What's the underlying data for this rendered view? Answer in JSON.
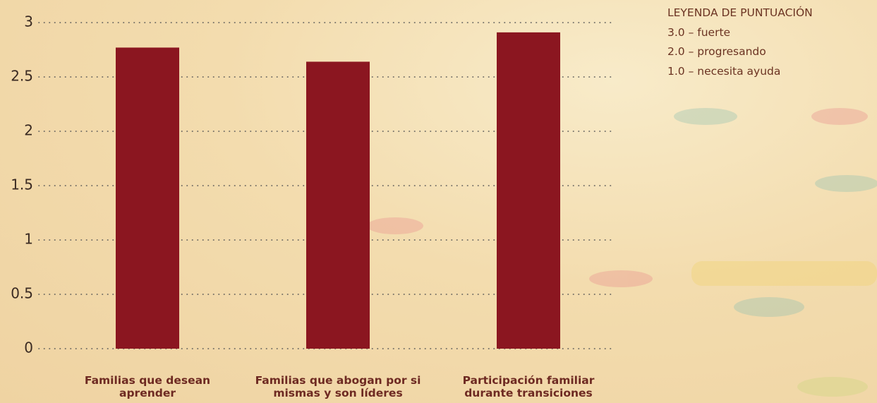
{
  "chart_data": {
    "type": "bar",
    "categories": [
      "Familias que desean aprender",
      "Familias que abogan por si mismas y son líderes",
      "Participación familiar durante transiciones"
    ],
    "values": [
      2.77,
      2.64,
      2.91
    ],
    "color": "#8b1620",
    "ylim": [
      0,
      3
    ],
    "yticks": [
      0,
      0.5,
      1,
      1.5,
      2,
      2.5,
      3
    ],
    "grid": true,
    "score_legend": {
      "title": "LEYENDA DE PUNTUACIÓN",
      "items": [
        "3.0 – fuerte",
        "2.0 – progresando",
        "1.0 – necesita ayuda"
      ]
    }
  }
}
